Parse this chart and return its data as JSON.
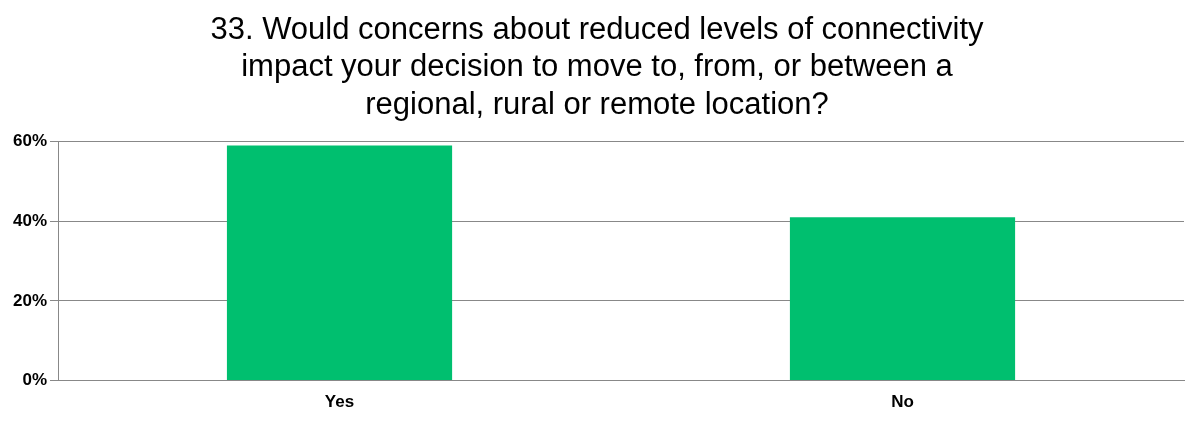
{
  "chart_data": {
    "type": "bar",
    "title": [
      "33. Would concerns about reduced levels of connectivity",
      "impact your decision to move to, from, or between a",
      "regional, rural or remote location?"
    ],
    "categories": [
      "Yes",
      "No"
    ],
    "values": [
      59,
      41
    ],
    "color": "#00bf6f",
    "ylim": [
      0,
      60
    ],
    "yticks": [
      {
        "value": 0,
        "label": "0%"
      },
      {
        "value": 20,
        "label": "20%"
      },
      {
        "value": 40,
        "label": "40%"
      },
      {
        "value": 60,
        "label": "60%"
      }
    ],
    "grid": "y",
    "legend": false
  }
}
